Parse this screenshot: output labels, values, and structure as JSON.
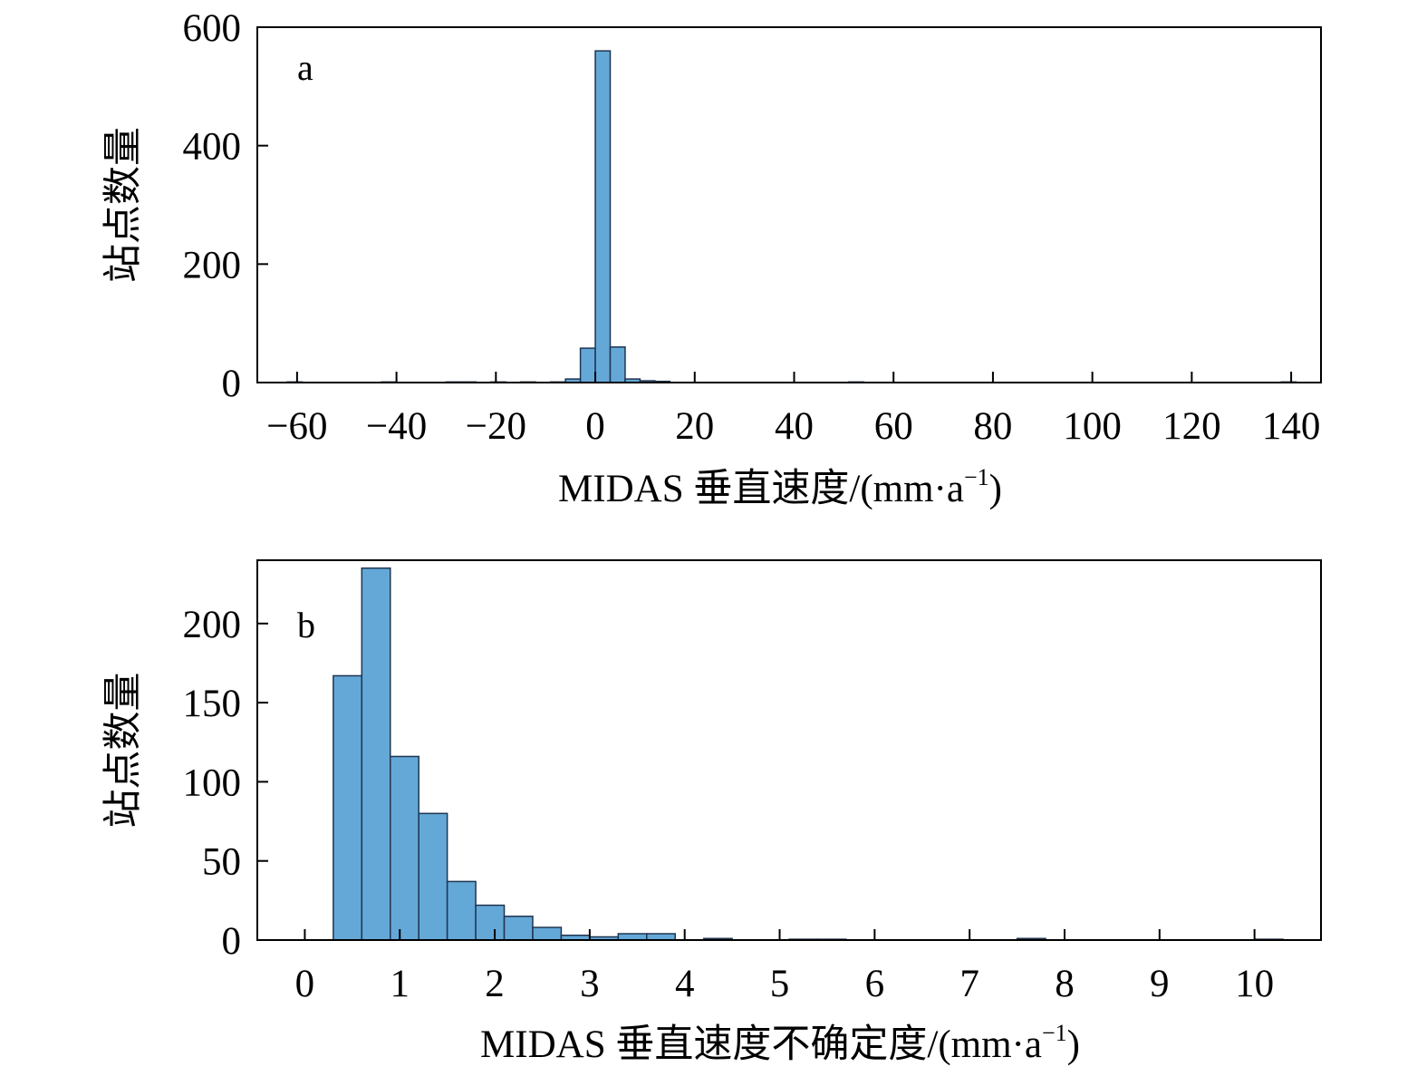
{
  "colors": {
    "bar_fill": "#64a8d8",
    "bar_edge": "#1f3550",
    "axis": "#000000"
  },
  "chart_data": [
    {
      "type": "bar",
      "panel_label": "a",
      "xlabel_main": "MIDAS 垂直速度/(mm·a",
      "xlabel_sup": "−1",
      "xlabel_end": ")",
      "ylabel": "站点数量",
      "xlim": [
        -68,
        146
      ],
      "ylim": [
        0,
        600
      ],
      "x_ticks": [
        -60,
        -40,
        -20,
        0,
        20,
        40,
        60,
        80,
        100,
        120,
        140
      ],
      "x_tick_labels": [
        "−60",
        "−40",
        "−20",
        "0",
        "20",
        "40",
        "60",
        "80",
        "100",
        "120",
        "140"
      ],
      "y_ticks": [
        0,
        200,
        400,
        600
      ],
      "y_tick_labels": [
        "0",
        "200",
        "400",
        "600"
      ],
      "grid": false,
      "bin_width": 3,
      "bins": [
        {
          "x0": -62,
          "x1": -59,
          "count": 1
        },
        {
          "x0": -43,
          "x1": -40,
          "count": 1
        },
        {
          "x0": -30,
          "x1": -27,
          "count": 1
        },
        {
          "x0": -27,
          "x1": -24,
          "count": 1
        },
        {
          "x0": -21,
          "x1": -18,
          "count": 1
        },
        {
          "x0": -15,
          "x1": -12,
          "count": 1
        },
        {
          "x0": -9,
          "x1": -6,
          "count": 1
        },
        {
          "x0": -6,
          "x1": -3,
          "count": 6
        },
        {
          "x0": -3,
          "x1": 0,
          "count": 58
        },
        {
          "x0": 0,
          "x1": 3,
          "count": 560
        },
        {
          "x0": 3,
          "x1": 6,
          "count": 60
        },
        {
          "x0": 6,
          "x1": 9,
          "count": 6
        },
        {
          "x0": 9,
          "x1": 12,
          "count": 3
        },
        {
          "x0": 12,
          "x1": 15,
          "count": 2
        },
        {
          "x0": 51,
          "x1": 54,
          "count": 1
        },
        {
          "x0": 138,
          "x1": 141,
          "count": 1
        }
      ]
    },
    {
      "type": "bar",
      "panel_label": "b",
      "xlabel_main": "MIDAS 垂直速度不确定度/(mm·a",
      "xlabel_sup": "−1",
      "xlabel_end": ")",
      "ylabel": "站点数量",
      "xlim": [
        -0.5,
        10.7
      ],
      "ylim": [
        0,
        240
      ],
      "x_ticks": [
        0,
        1,
        2,
        3,
        4,
        5,
        6,
        7,
        8,
        9,
        10
      ],
      "x_tick_labels": [
        "0",
        "1",
        "2",
        "3",
        "4",
        "5",
        "6",
        "7",
        "8",
        "9",
        "10"
      ],
      "y_ticks": [
        0,
        50,
        100,
        150,
        200
      ],
      "y_tick_labels": [
        "0",
        "50",
        "100",
        "150",
        "200"
      ],
      "grid": false,
      "bin_width": 0.3,
      "bins": [
        {
          "x0": 0.3,
          "x1": 0.6,
          "count": 167
        },
        {
          "x0": 0.6,
          "x1": 0.9,
          "count": 235
        },
        {
          "x0": 0.9,
          "x1": 1.2,
          "count": 116
        },
        {
          "x0": 1.2,
          "x1": 1.5,
          "count": 80
        },
        {
          "x0": 1.5,
          "x1": 1.8,
          "count": 37
        },
        {
          "x0": 1.8,
          "x1": 2.1,
          "count": 22
        },
        {
          "x0": 2.1,
          "x1": 2.4,
          "count": 15
        },
        {
          "x0": 2.4,
          "x1": 2.7,
          "count": 8
        },
        {
          "x0": 2.7,
          "x1": 3.0,
          "count": 3
        },
        {
          "x0": 3.0,
          "x1": 3.3,
          "count": 2
        },
        {
          "x0": 3.3,
          "x1": 3.6,
          "count": 4
        },
        {
          "x0": 3.6,
          "x1": 3.9,
          "count": 4
        },
        {
          "x0": 4.2,
          "x1": 4.5,
          "count": 1
        },
        {
          "x0": 5.1,
          "x1": 5.4,
          "count": 0.5
        },
        {
          "x0": 5.4,
          "x1": 5.7,
          "count": 0.5
        },
        {
          "x0": 7.5,
          "x1": 7.8,
          "count": 1
        },
        {
          "x0": 10.0,
          "x1": 10.3,
          "count": 0.5
        }
      ]
    }
  ]
}
